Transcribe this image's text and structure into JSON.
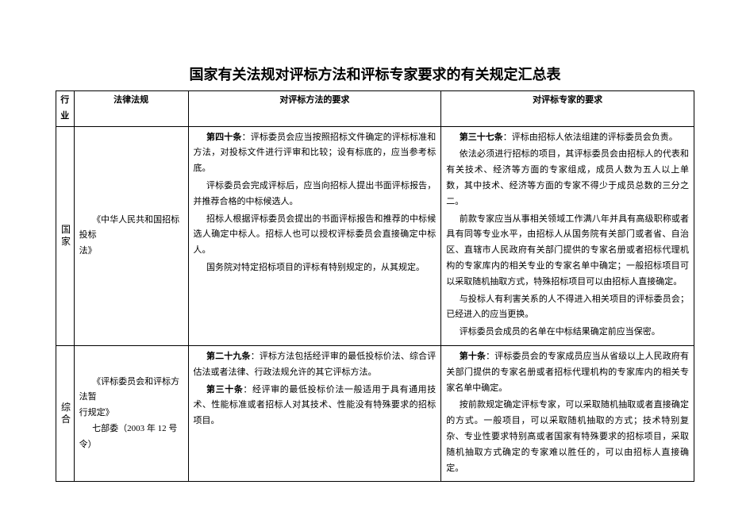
{
  "title": "国家有关法规对评标方法和评标专家要求的有关规定汇总表",
  "headers": {
    "industry": "行业",
    "law": "法律法规",
    "method": "对评标方法的要求",
    "expert": "对评标专家的要求"
  },
  "rows": [
    {
      "industry": "国家",
      "law_lines": [
        "《中华人民共和国招标投标",
        "法》"
      ],
      "method": {
        "a40_label": "第四十条",
        "a40_p1": "：评标委员会应当按照招标文件确定的评标标准和方法，对投标文件进行评审和比较；设有标底的，应当参考标底。",
        "a40_p2": "评标委员会完成评标后，应当向招标人提出书面评标报告，并推荐合格的中标候选人。",
        "a40_p3": "招标人根据评标委员会提出的书面评标报告和推荐的中标候选人确定中标人。招标人也可以授权评标委员会直接确定中标人。",
        "a40_p4": "国务院对特定招标项目的评标有特别规定的，从其规定。"
      },
      "expert": {
        "a37_label": "第三十七条",
        "a37_p1": "：评标由招标人依法组建的评标委员会负责。",
        "a37_p2": "依法必须进行招标的项目，其评标委员会由招标人的代表和有关技术、经济等方面的专家组成，成员人数为五人以上单数，其中技术、经济等方面的专家不得少于成员总数的三分之二。",
        "a37_p3": "前款专家应当从事相关领域工作满八年并具有高级职称或者具有同等专业水平，由招标人从国务院有关部门或者省、自治区、直辖市人民政府有关部门提供的专家名册或者招标代理机构的专家库内的相关专业的专家名单中确定；一般招标项目可以采取随机抽取方式，特殊招标项目可以由招标人直接确定。",
        "a37_p4": "与投标人有利害关系的人不得进入相关项目的评标委员会；已经进入的应当更换。",
        "a37_p5": "评标委员会成员的名单在中标结果确定前应当保密。"
      }
    },
    {
      "industry": "综合",
      "law_lines": [
        "《评标委员会和评标方法暂",
        "行规定》",
        "七部委（2003 年 12 号令）"
      ],
      "method": {
        "a29_label": "第二十九条",
        "a29_p1": "：评标方法包括经评审的最低投标价法、综合评估法或者法律、行政法规允许的其它评标方法。",
        "a30_label": "第三十条",
        "a30_p1": "：经评审的最低投标价法一般适用于具有通用技术、性能标准或者招标人对其技术、性能没有特殊要求的招标项目。"
      },
      "expert": {
        "a10_label": "第十条",
        "a10_p1": "：评标委员会的专家成员应当从省级以上人民政府有关部门提供的专家名册或者招标代理机构的专家库内的相关专家名单中确定。",
        "a10_p2": "按前款规定确定评标专家，可以采取随机抽取或者直接确定的方式。一般项目，可以采取随机抽取的方式；技术特别复杂、专业性要求特别高或者国家有特殊要求的招标项目，采取随机抽取方式确定的专家难以胜任的，可以由招标人直接确定。"
      }
    }
  ]
}
